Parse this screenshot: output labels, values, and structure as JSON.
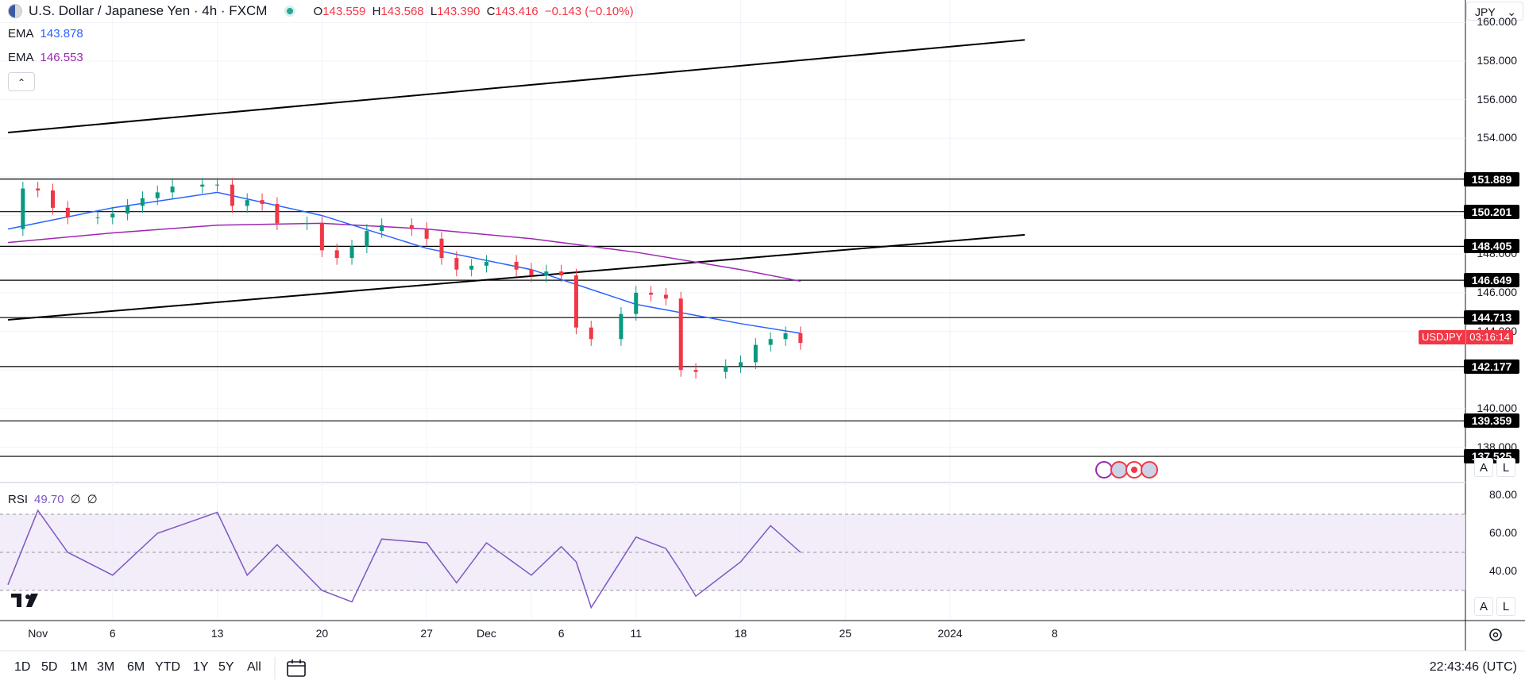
{
  "header": {
    "title": "U.S. Dollar / Japanese Yen · 4h · FXCM",
    "ohlc": [
      {
        "label": "O",
        "value": "143.559"
      },
      {
        "label": "H",
        "value": "143.568"
      },
      {
        "label": "L",
        "value": "143.390"
      },
      {
        "label": "C",
        "value": "143.416"
      }
    ],
    "change": "−0.143 (−0.10%)",
    "currency": "JPY"
  },
  "indicators": {
    "ema_fast": {
      "label": "EMA",
      "value": "143.878",
      "color": "#2962ff"
    },
    "ema_slow": {
      "label": "EMA",
      "value": "146.553",
      "color": "#9c27b0"
    },
    "rsi": {
      "label": "RSI",
      "value": "49.70",
      "extra1": "∅",
      "extra2": "∅",
      "color": "#7e57c2"
    }
  },
  "price_axis": {
    "ticks": [
      "160.000",
      "158.000",
      "156.000",
      "154.000",
      "148.000",
      "146.000",
      "144.000",
      "140.000",
      "138.000"
    ],
    "levels": [
      "151.889",
      "150.201",
      "148.405",
      "146.649",
      "144.713",
      "142.177",
      "139.359",
      "137.525"
    ],
    "symbol": "USDJPY",
    "countdown": "03:16:14"
  },
  "rsi_axis": {
    "ticks": [
      "80.00",
      "60.00",
      "40.00"
    ]
  },
  "time_axis": {
    "labels": [
      "Nov",
      "6",
      "13",
      "20",
      "27",
      "Dec",
      "6",
      "11",
      "18",
      "25",
      "2024",
      "8"
    ]
  },
  "controls": {
    "ranges": [
      "1D",
      "5D",
      "1M",
      "3M",
      "6M",
      "YTD",
      "1Y",
      "5Y",
      "All"
    ],
    "clock": "22:43:46 (UTC)",
    "auto_label": "A",
    "log_label": "L",
    "collapse_icon": "chevron-up-icon",
    "calendar_icon": "calendar-icon",
    "settings_icon": "gear-icon",
    "logo": "TV"
  },
  "chart_data": {
    "type": "line",
    "symbol": "USDJPY",
    "ylim": [
      136.5,
      161
    ],
    "horizontal_levels": [
      151.889,
      150.201,
      148.405,
      146.649,
      144.713,
      142.177,
      139.359,
      137.525
    ],
    "trendlines": [
      {
        "from": [
          "2023-10-30",
          154.3
        ],
        "to": [
          "2024-01-06",
          159.1
        ]
      },
      {
        "from": [
          "2023-10-30",
          144.6
        ],
        "to": [
          "2024-01-06",
          149.0
        ]
      }
    ],
    "close_series": {
      "x": [
        "2023-10-30",
        "2023-10-31",
        "2023-11-01",
        "2023-11-02",
        "2023-11-03",
        "2023-11-05",
        "2023-11-06",
        "2023-11-07",
        "2023-11-08",
        "2023-11-09",
        "2023-11-10",
        "2023-11-12",
        "2023-11-13",
        "2023-11-14",
        "2023-11-15",
        "2023-11-16",
        "2023-11-17",
        "2023-11-19",
        "2023-11-20",
        "2023-11-21",
        "2023-11-22",
        "2023-11-23",
        "2023-11-24",
        "2023-11-26",
        "2023-11-27",
        "2023-11-28",
        "2023-11-29",
        "2023-11-30",
        "2023-12-01",
        "2023-12-03",
        "2023-12-04",
        "2023-12-05",
        "2023-12-06",
        "2023-12-07",
        "2023-12-08",
        "2023-12-10",
        "2023-12-11",
        "2023-12-12",
        "2023-12-13",
        "2023-12-14",
        "2023-12-15",
        "2023-12-17",
        "2023-12-18",
        "2023-12-19",
        "2023-12-20",
        "2023-12-21",
        "2023-12-22"
      ],
      "y": [
        149.3,
        151.4,
        151.3,
        150.4,
        149.9,
        149.9,
        150.1,
        150.5,
        150.9,
        151.2,
        151.5,
        151.6,
        151.6,
        150.5,
        150.8,
        150.6,
        149.6,
        149.6,
        148.2,
        147.8,
        148.4,
        149.2,
        149.5,
        149.3,
        148.8,
        147.8,
        147.2,
        147.4,
        147.6,
        147.2,
        146.9,
        147.1,
        146.9,
        144.2,
        143.6,
        144.9,
        146.0,
        145.9,
        145.7,
        142.0,
        141.9,
        142.2,
        142.4,
        143.3,
        143.6,
        143.9,
        143.4
      ]
    },
    "ema_fast": {
      "name": "EMA",
      "x": [
        "2023-10-30",
        "2023-11-06",
        "2023-11-13",
        "2023-11-20",
        "2023-11-27",
        "2023-12-04",
        "2023-12-11",
        "2023-12-18",
        "2023-12-22"
      ],
      "y": [
        149.3,
        150.4,
        151.2,
        150.0,
        148.3,
        147.2,
        145.4,
        144.4,
        143.9
      ]
    },
    "ema_slow": {
      "name": "EMA",
      "x": [
        "2023-10-30",
        "2023-11-06",
        "2023-11-13",
        "2023-11-20",
        "2023-11-27",
        "2023-12-04",
        "2023-12-11",
        "2023-12-18",
        "2023-12-22"
      ],
      "y": [
        148.6,
        149.1,
        149.5,
        149.6,
        149.3,
        148.8,
        148.1,
        147.2,
        146.6
      ]
    },
    "rsi": {
      "x": [
        "2023-10-30",
        "2023-11-01",
        "2023-11-03",
        "2023-11-06",
        "2023-11-09",
        "2023-11-13",
        "2023-11-15",
        "2023-11-17",
        "2023-11-20",
        "2023-11-22",
        "2023-11-24",
        "2023-11-27",
        "2023-11-29",
        "2023-12-01",
        "2023-12-04",
        "2023-12-06",
        "2023-12-07",
        "2023-12-08",
        "2023-12-11",
        "2023-12-13",
        "2023-12-14",
        "2023-12-15",
        "2023-12-18",
        "2023-12-20",
        "2023-12-22"
      ],
      "y": [
        33,
        72,
        50,
        38,
        60,
        71,
        38,
        54,
        30,
        24,
        57,
        55,
        34,
        55,
        38,
        53,
        45,
        21,
        58,
        52,
        40,
        27,
        45,
        64,
        50
      ],
      "ylim": [
        15,
        85
      ],
      "bands": [
        30,
        50,
        70
      ]
    }
  }
}
